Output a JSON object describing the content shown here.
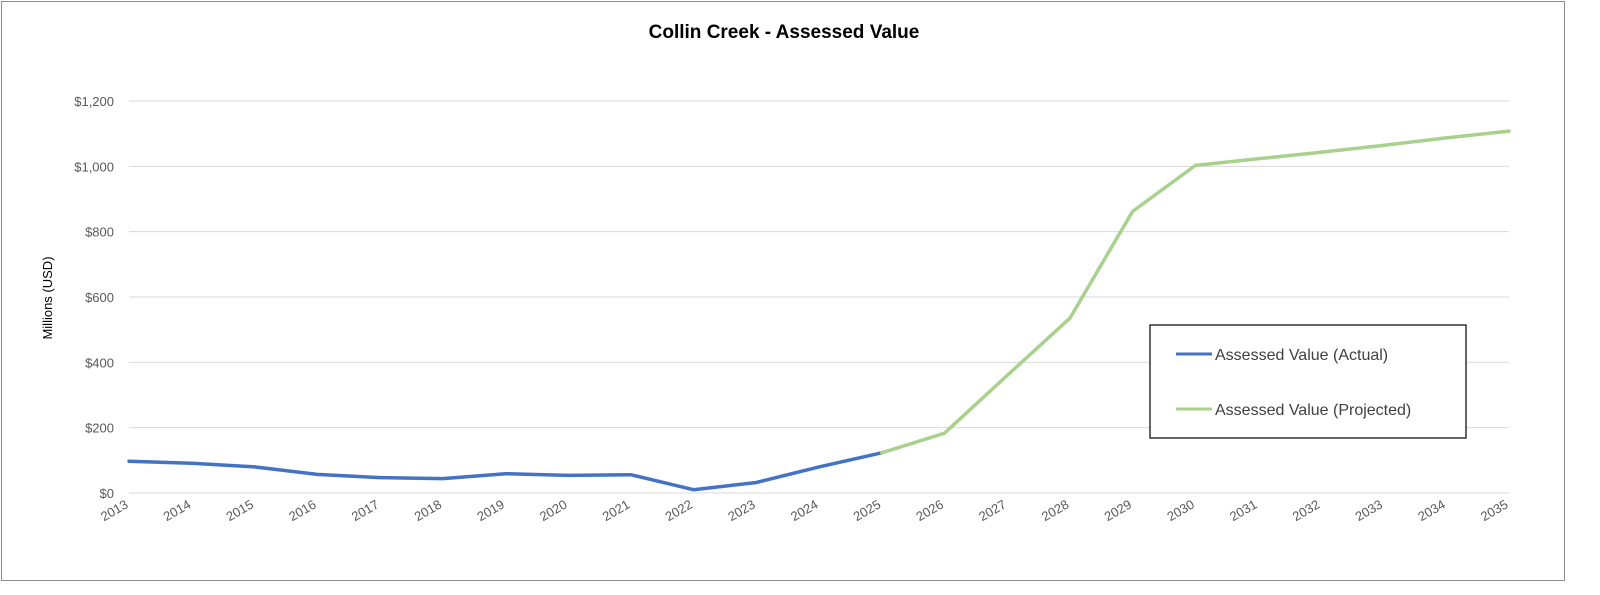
{
  "chart_data": {
    "type": "line",
    "title": "Collin Creek - Assessed Value",
    "xlabel": "",
    "ylabel": "Millions (USD)",
    "ylim": [
      0,
      1200
    ],
    "yticks": [
      "$0",
      "$200",
      "$400",
      "$600",
      "$800",
      "$1,000",
      "$1,200"
    ],
    "x": [
      "2013",
      "2014",
      "2015",
      "2016",
      "2017",
      "2018",
      "2019",
      "2020",
      "2021",
      "2022",
      "2023",
      "2024",
      "2025",
      "2026",
      "2027",
      "2028",
      "2029",
      "2030",
      "2031",
      "2032",
      "2033",
      "2034",
      "2035"
    ],
    "grid": true,
    "legend_position": "right",
    "series": [
      {
        "name": "Assessed Value (Actual)",
        "color": "#4472c4",
        "values": [
          97,
          91,
          80,
          57,
          47,
          44,
          59,
          54,
          56,
          10,
          32,
          80,
          123,
          null,
          null,
          null,
          null,
          null,
          null,
          null,
          null,
          null,
          null
        ]
      },
      {
        "name": "Assessed Value (Projected)",
        "color": "#a9d18e",
        "values": [
          null,
          null,
          null,
          null,
          null,
          null,
          null,
          null,
          null,
          null,
          null,
          null,
          123,
          183,
          360,
          535,
          862,
          1003,
          1023,
          1043,
          1064,
          1087,
          1108
        ]
      }
    ]
  }
}
